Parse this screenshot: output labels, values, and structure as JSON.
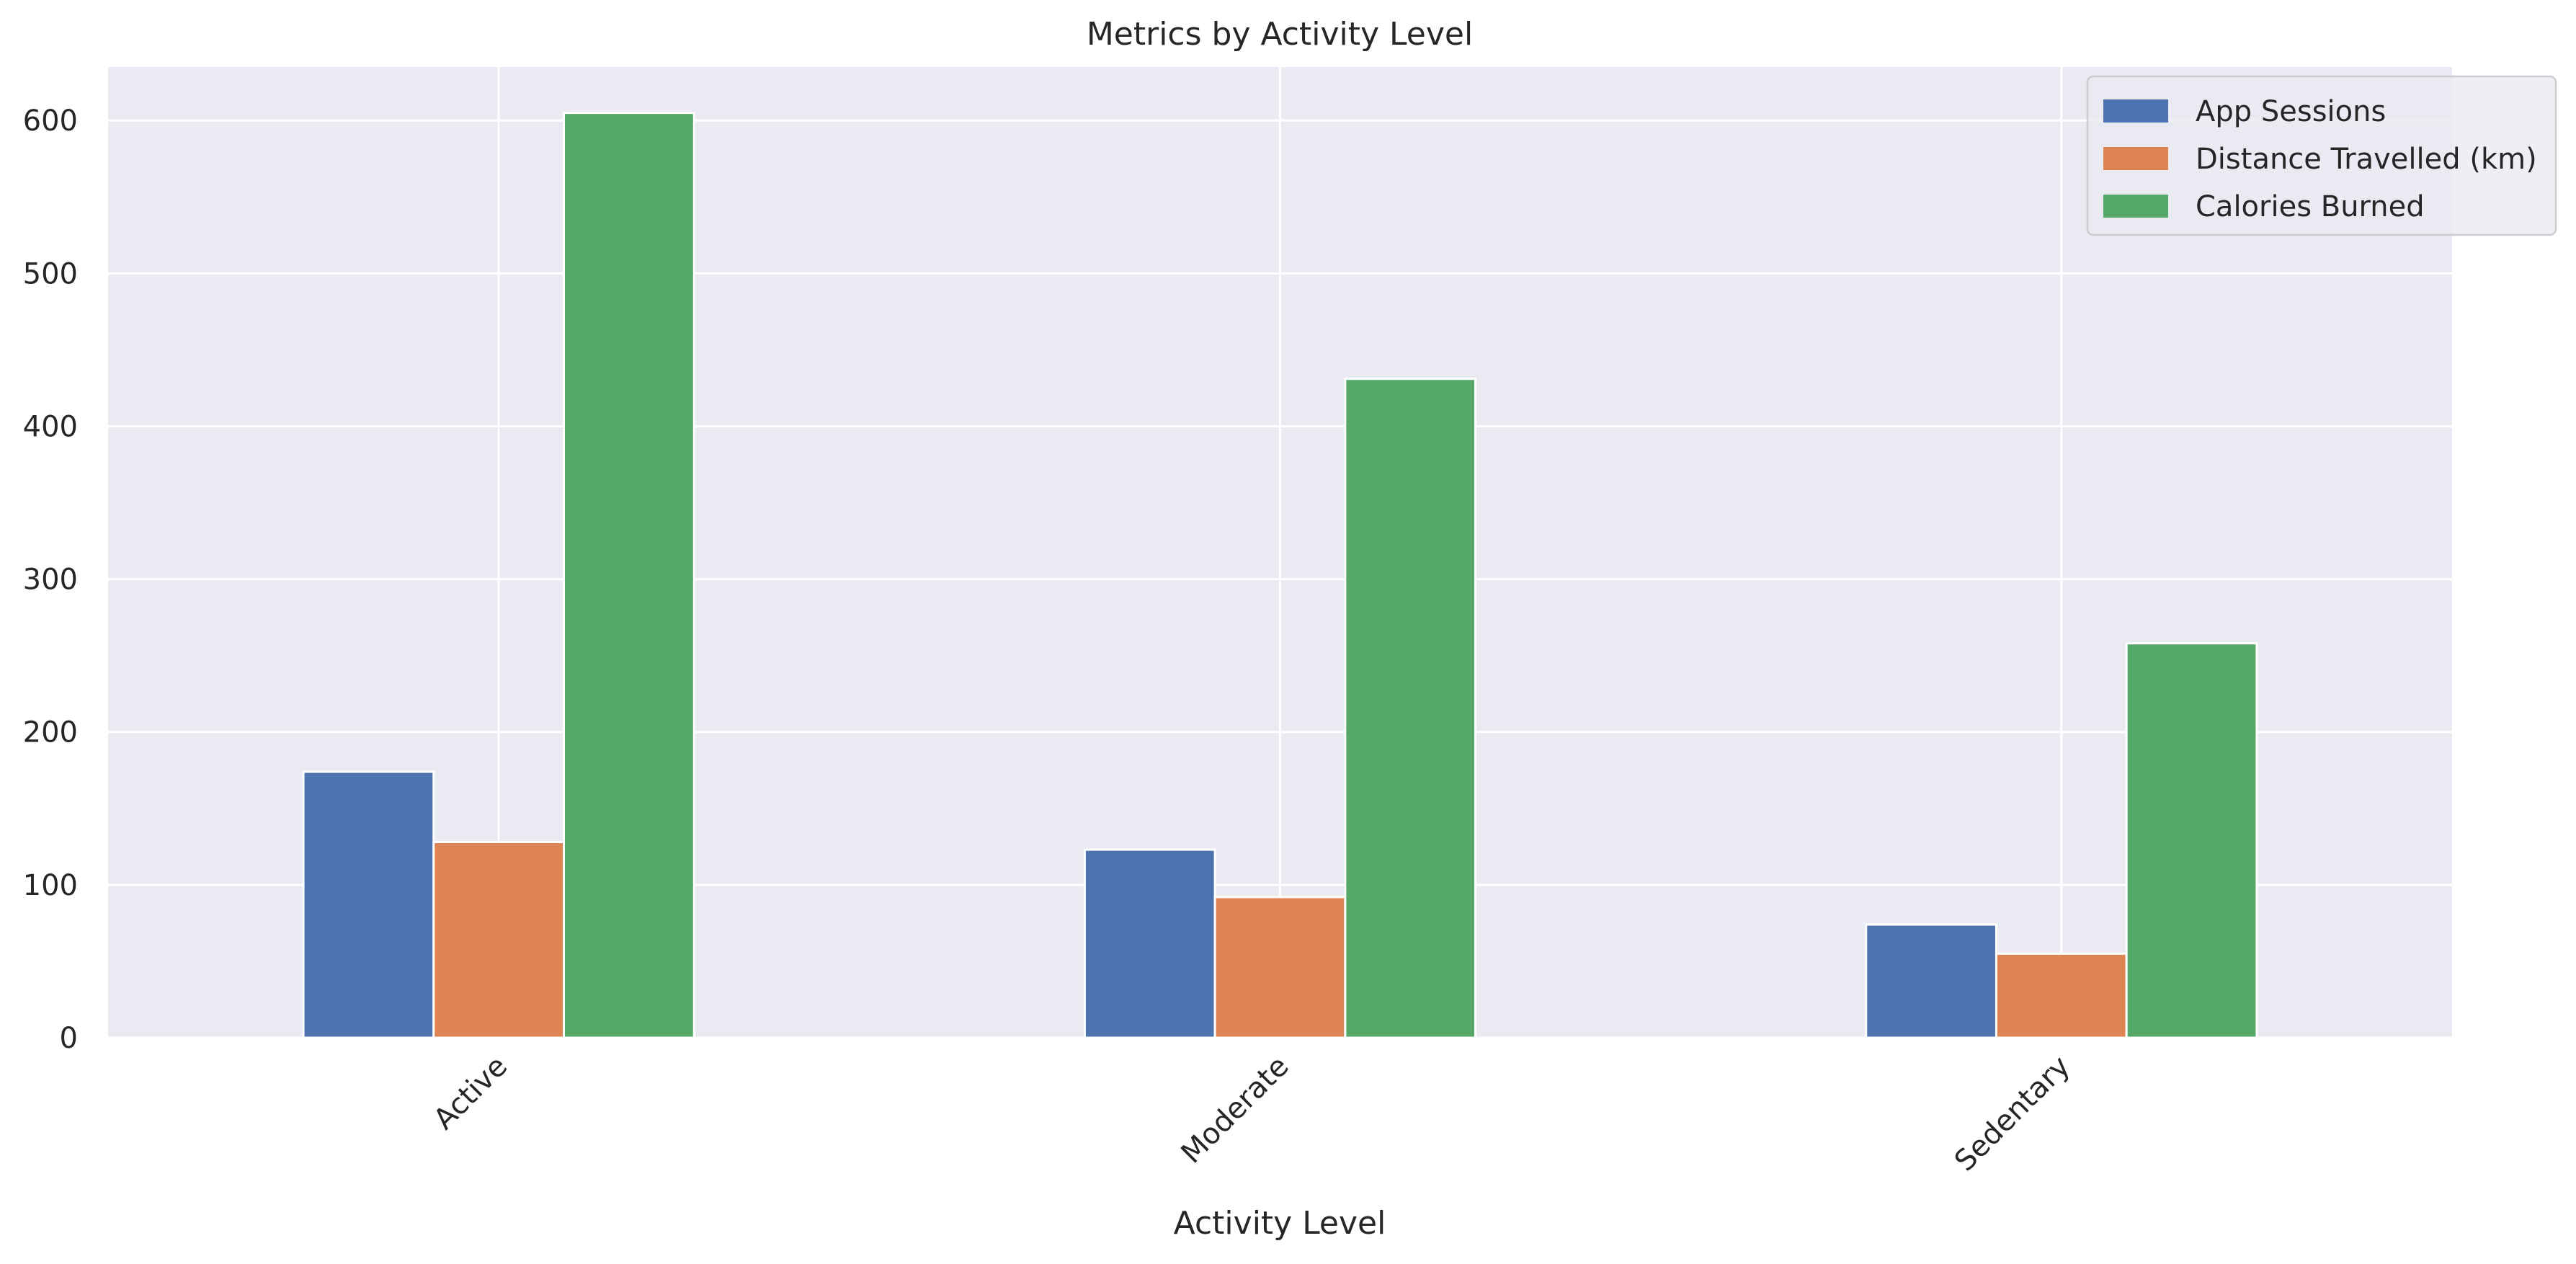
{
  "chart_data": {
    "type": "bar",
    "title": "Metrics by Activity Level",
    "xlabel": "Activity Level",
    "ylabel": "",
    "categories": [
      "Active",
      "Moderate",
      "Sedentary"
    ],
    "series": [
      {
        "name": "App Sessions",
        "values": [
          174,
          123,
          74
        ],
        "color": "#4c72b0"
      },
      {
        "name": "Distance Travelled (km)",
        "values": [
          128,
          92,
          55
        ],
        "color": "#dd8452"
      },
      {
        "name": "Calories Burned",
        "values": [
          605,
          431,
          258
        ],
        "color": "#55a868"
      }
    ],
    "ylim": [
      0,
      635
    ],
    "yticks": [
      0,
      100,
      200,
      300,
      400,
      500,
      600
    ],
    "grid": true,
    "legend_position": "top-right",
    "background": "#eaeaf2"
  }
}
